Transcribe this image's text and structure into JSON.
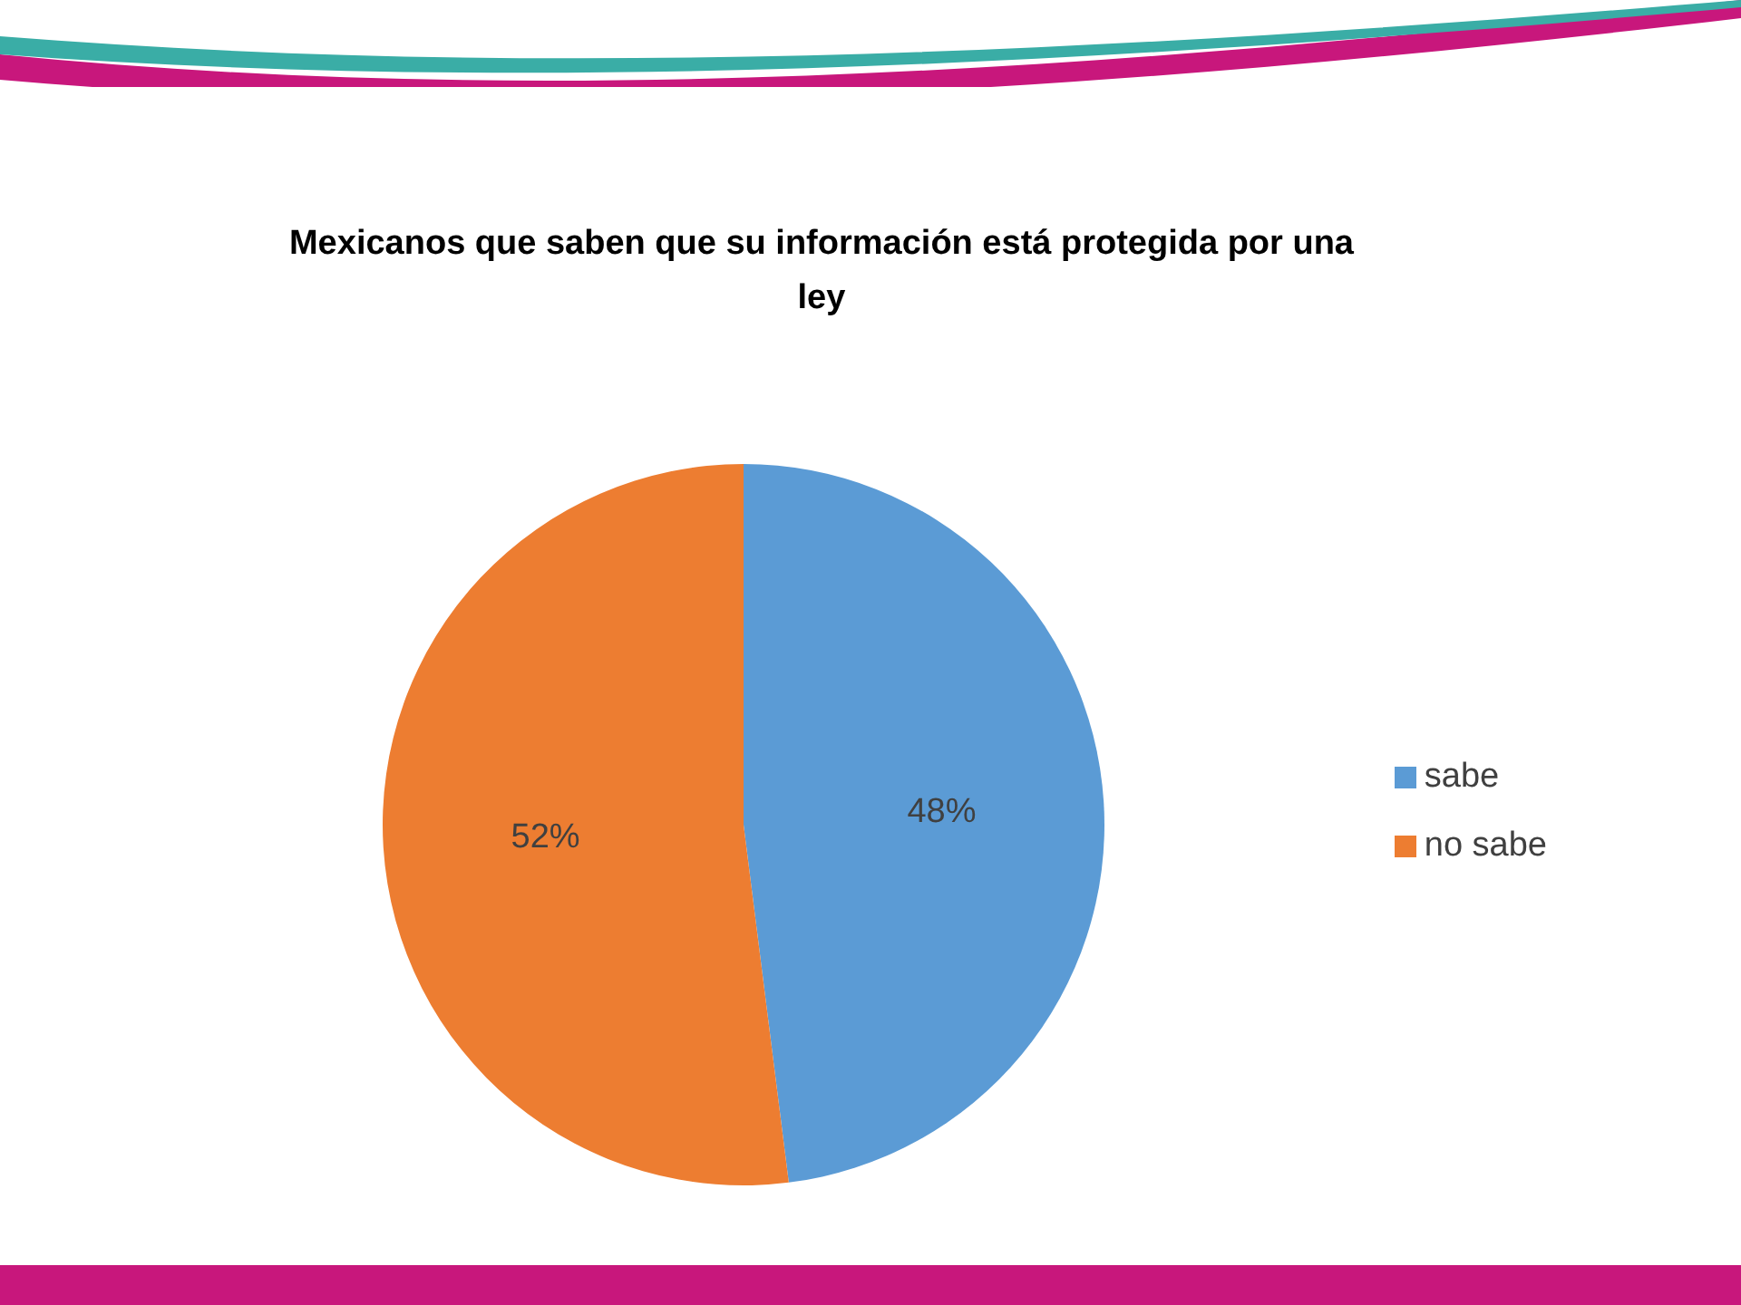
{
  "chart_data": {
    "type": "pie",
    "title": "Mexicanos que saben que su información está protegida por una ley",
    "categories": [
      "sabe",
      "no sabe"
    ],
    "values": [
      48,
      52
    ],
    "colors": [
      "#5b9bd5",
      "#ed7d31"
    ],
    "value_labels": [
      "48%",
      "52%"
    ],
    "legend": "right"
  }
}
